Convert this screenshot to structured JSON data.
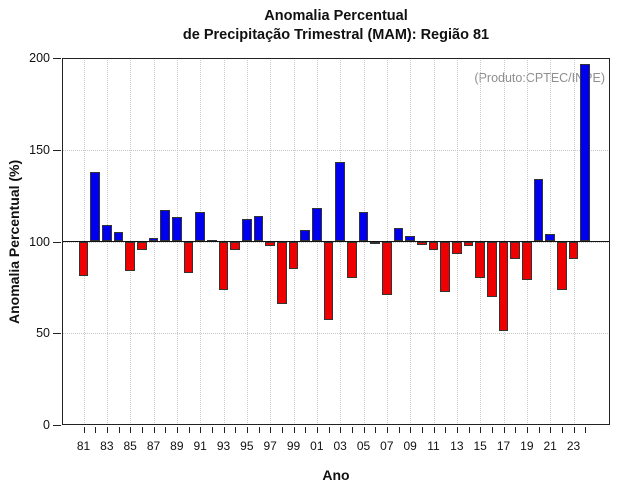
{
  "page": {
    "background": "#ffffff"
  },
  "header": {
    "title_line1": "Anomalia Percentual",
    "title_line2": "de Precipitação Trimestral (MAM): Região 81",
    "watermark": "(Produto:CPTEC/INPE)"
  },
  "chart_data": {
    "type": "bar",
    "title": "Anomalia Percentual de Precipitação Trimestral (MAM): Região 81",
    "xlabel": "Ano",
    "ylabel": "Anomalia Percentual (%)",
    "ylim": [
      0,
      200
    ],
    "yticks": [
      0,
      50,
      100,
      150,
      200
    ],
    "baseline": 100,
    "grid": "dotted, vertical at labeled years, horizontal at yticks",
    "legend": "none",
    "x_label_every": 2,
    "categories": [
      "81",
      "82",
      "83",
      "84",
      "85",
      "86",
      "87",
      "88",
      "89",
      "90",
      "91",
      "92",
      "93",
      "94",
      "95",
      "96",
      "97",
      "98",
      "99",
      "00",
      "01",
      "02",
      "03",
      "04",
      "05",
      "06",
      "07",
      "08",
      "09",
      "10",
      "11",
      "12",
      "13",
      "14",
      "15",
      "16",
      "17",
      "18",
      "19",
      "20",
      "21",
      "22",
      "23",
      "24"
    ],
    "values": [
      81,
      138,
      109,
      105,
      84,
      95.5,
      102,
      117,
      113.5,
      83,
      116,
      101,
      73.5,
      95.5,
      112,
      114,
      97.5,
      66,
      85,
      106.5,
      118,
      57,
      143.5,
      80,
      116,
      99.8,
      71,
      107.5,
      103,
      98,
      95.5,
      72.5,
      93,
      97.5,
      80,
      69.5,
      51,
      90.5,
      79,
      134,
      104,
      73.5,
      90.5,
      197
    ],
    "colors": {
      "above_baseline": "#0000ee",
      "below_baseline": "#ee0000",
      "bar_border": "#333333",
      "baseline_line": "#111111",
      "grid_line": "#c9c9c9",
      "axis": "#222222",
      "watermark_text": "#8f8f8f",
      "text": "#111111"
    }
  }
}
